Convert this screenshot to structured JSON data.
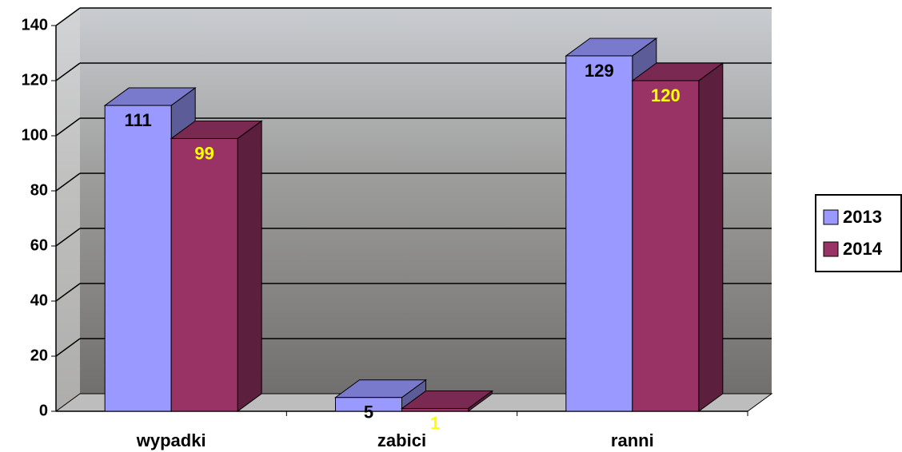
{
  "chart_data": {
    "type": "bar3d",
    "categories": [
      "wypadki",
      "zabici",
      "ranni"
    ],
    "series": [
      {
        "name": "2013",
        "color": "#9999ff",
        "label_color": "#000000",
        "values": [
          111,
          5,
          129
        ]
      },
      {
        "name": "2014",
        "color": "#993366",
        "label_color": "#ffff00",
        "values": [
          99,
          1,
          120
        ]
      }
    ],
    "ylim": [
      0,
      140
    ],
    "yticks": [
      0,
      20,
      40,
      60,
      80,
      100,
      120,
      140
    ],
    "grid": true,
    "legend": "right"
  }
}
